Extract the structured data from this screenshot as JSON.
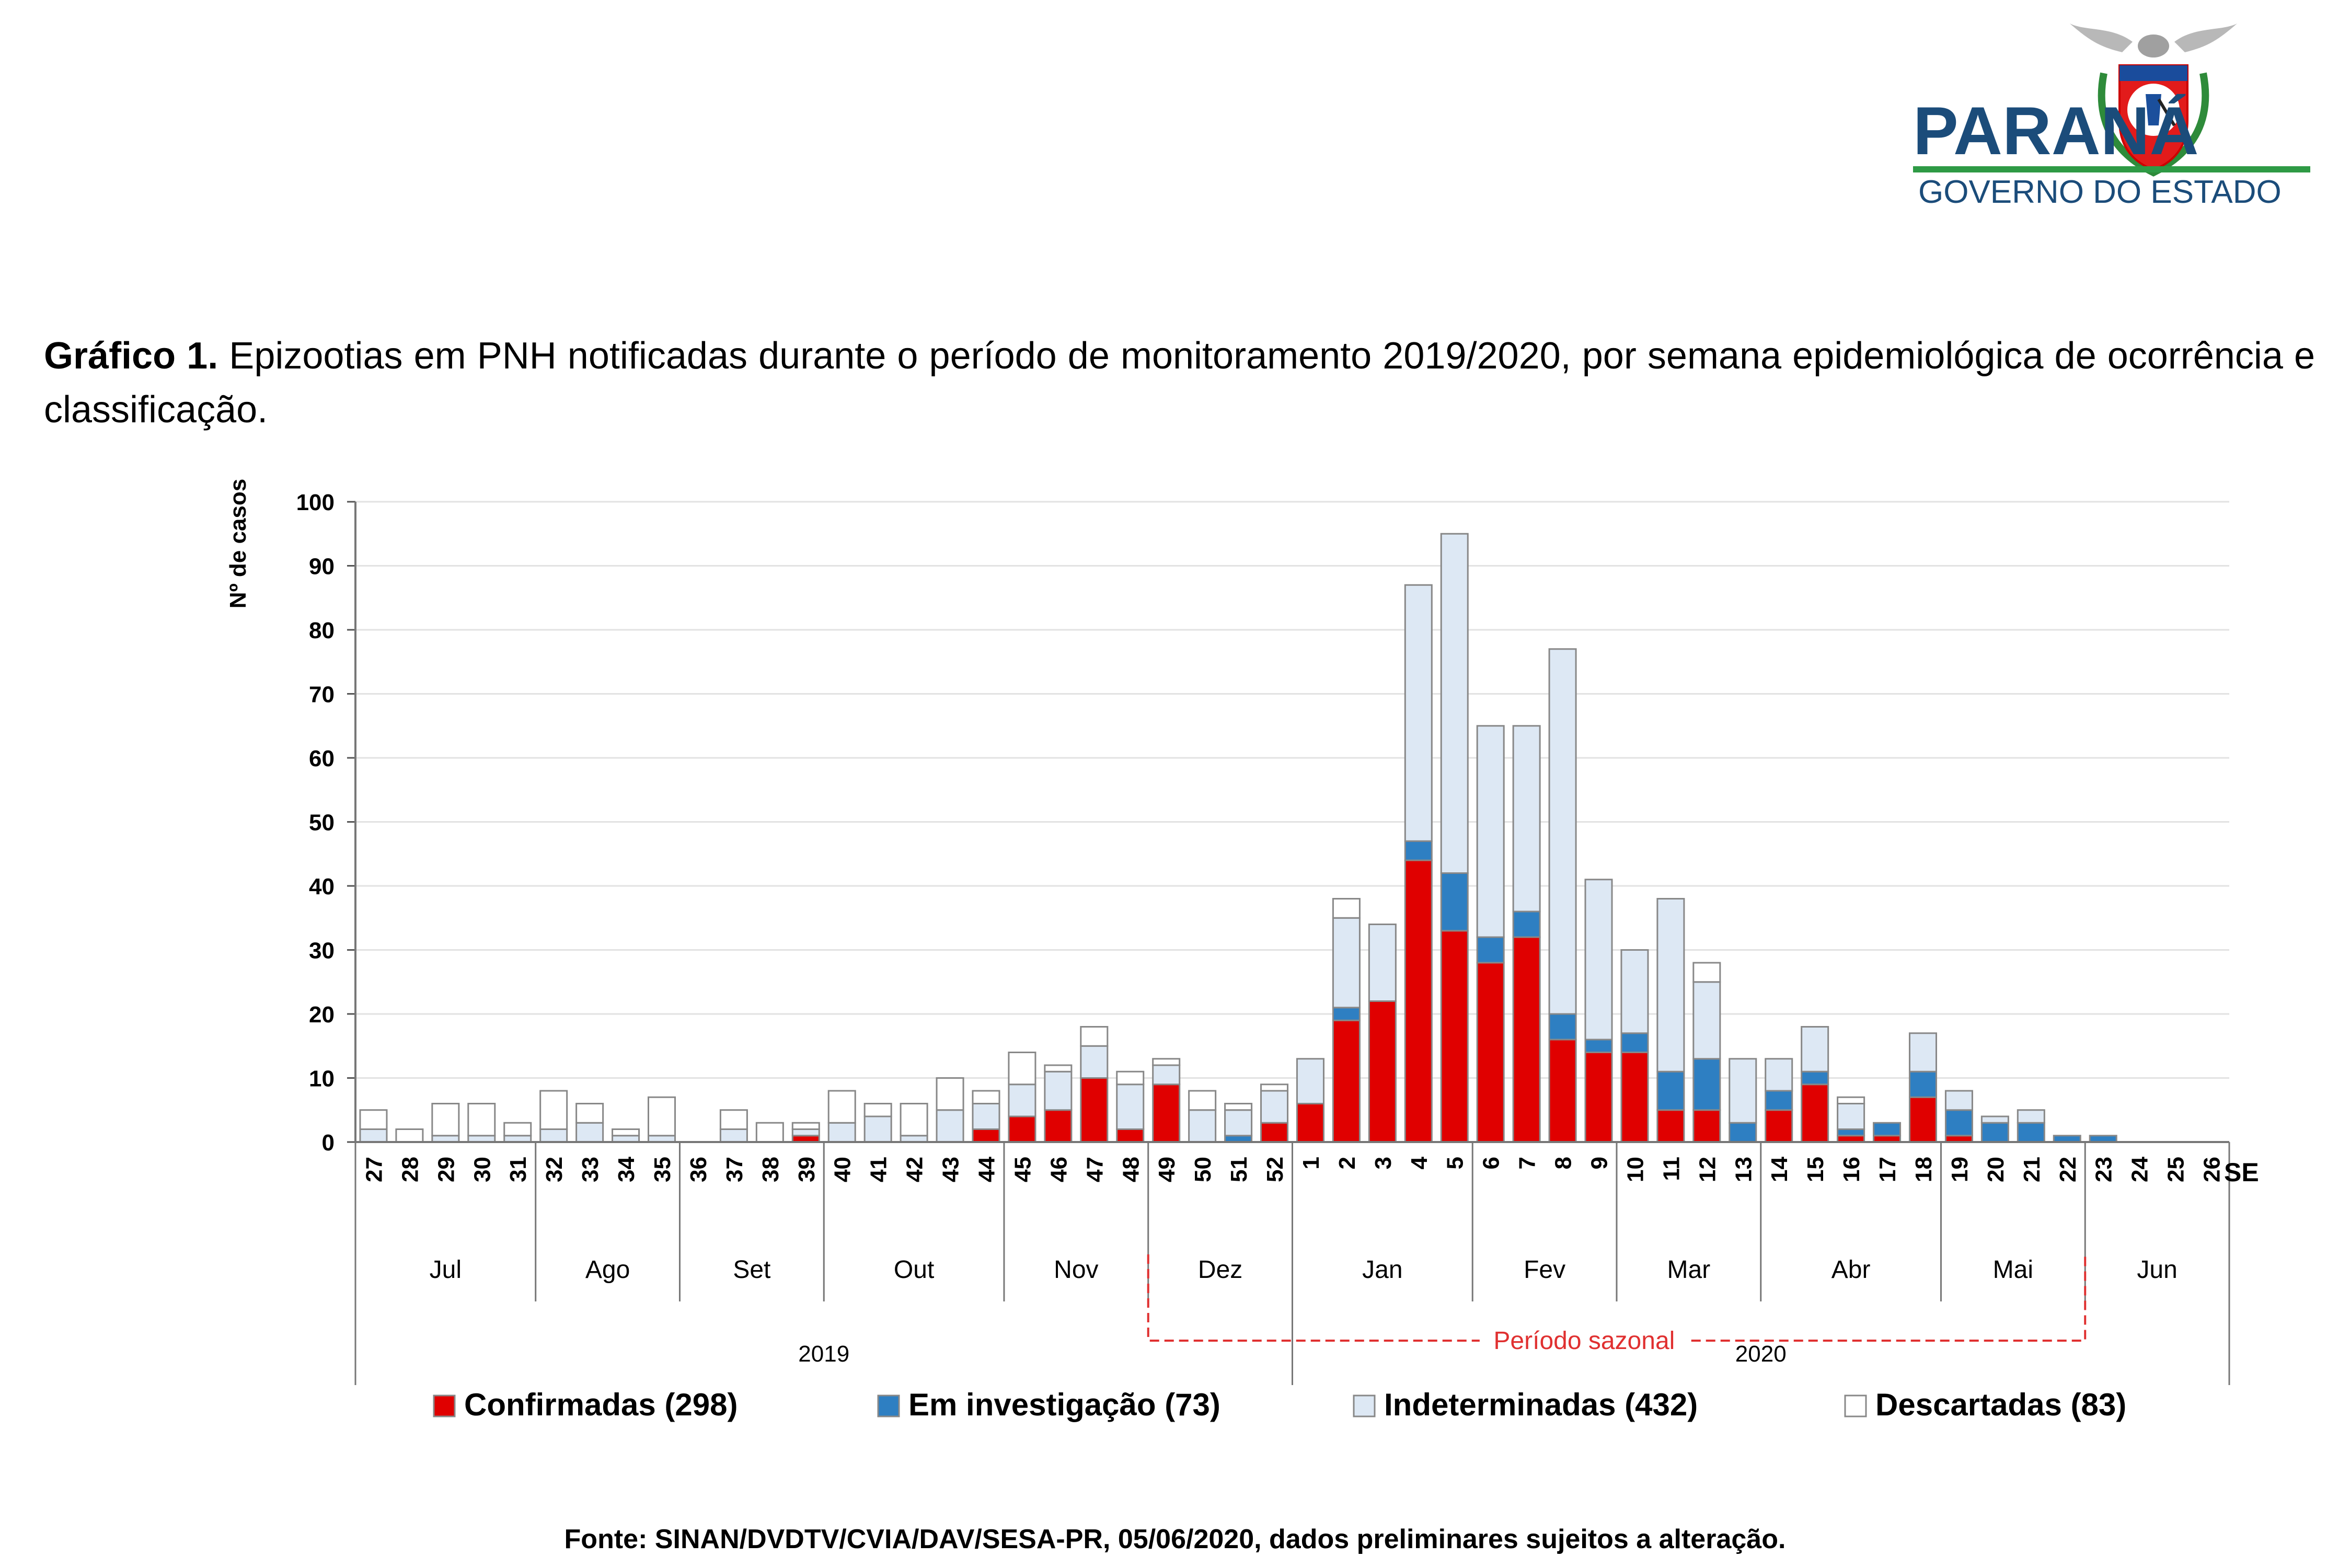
{
  "logo": {
    "name": "PARANÁ",
    "subtitle": "GOVERNO DO ESTADO"
  },
  "caption": {
    "label": "Gráfico 1.",
    "text": " Epizootias em PNH notificadas durante o período de monitoramento 2019/2020, por semana epidemiológica de ocorrência e classificação."
  },
  "source": "Fonte: SINAN/DVDTV/CVIA/DAV/SESA-PR, 05/06/2020, dados preliminares sujeitos a alteração.",
  "chart_data": {
    "type": "bar",
    "stacked": true,
    "title": "",
    "ylabel": "Nº de casos",
    "xlabel": "SE",
    "ylim": [
      0,
      100
    ],
    "yticks": [
      0,
      10,
      20,
      30,
      40,
      50,
      60,
      70,
      80,
      90,
      100
    ],
    "grid": true,
    "legend_position": "bottom",
    "categories": [
      "27",
      "28",
      "29",
      "30",
      "31",
      "32",
      "33",
      "34",
      "35",
      "36",
      "37",
      "38",
      "39",
      "40",
      "41",
      "42",
      "43",
      "44",
      "45",
      "46",
      "47",
      "48",
      "49",
      "50",
      "51",
      "52",
      "1",
      "2",
      "3",
      "4",
      "5",
      "6",
      "7",
      "8",
      "9",
      "10",
      "11",
      "12",
      "13",
      "14",
      "15",
      "16",
      "17",
      "18",
      "19",
      "20",
      "21",
      "22",
      "23",
      "24",
      "25",
      "26"
    ],
    "months": [
      {
        "label": "Jul",
        "start": 0,
        "end": 4
      },
      {
        "label": "Ago",
        "start": 5,
        "end": 8
      },
      {
        "label": "Set",
        "start": 9,
        "end": 12
      },
      {
        "label": "Out",
        "start": 13,
        "end": 17
      },
      {
        "label": "Nov",
        "start": 18,
        "end": 21
      },
      {
        "label": "Dez",
        "start": 22,
        "end": 25
      },
      {
        "label": "Jan",
        "start": 26,
        "end": 30
      },
      {
        "label": "Fev",
        "start": 31,
        "end": 34
      },
      {
        "label": "Mar",
        "start": 35,
        "end": 38
      },
      {
        "label": "Abr",
        "start": 39,
        "end": 43
      },
      {
        "label": "Mai",
        "start": 44,
        "end": 47
      },
      {
        "label": "Jun",
        "start": 48,
        "end": 51
      }
    ],
    "years": [
      {
        "label": "2019",
        "start": 0,
        "end": 25
      },
      {
        "label": "2020",
        "start": 26,
        "end": 51
      }
    ],
    "annotation": {
      "label": "Período sazonal",
      "start_week": "49",
      "end_week": "22"
    },
    "series": [
      {
        "name": "Confirmadas (298)",
        "color": "#e00000",
        "values": [
          0,
          0,
          0,
          0,
          0,
          0,
          0,
          0,
          0,
          0,
          0,
          0,
          1,
          0,
          0,
          0,
          0,
          2,
          4,
          5,
          10,
          2,
          9,
          0,
          0,
          3,
          6,
          19,
          22,
          44,
          33,
          28,
          32,
          16,
          14,
          14,
          5,
          5,
          0,
          5,
          9,
          1,
          1,
          7,
          1,
          0,
          0,
          0,
          0,
          0,
          0,
          0
        ]
      },
      {
        "name": "Em investigação (73)",
        "color": "#2e7fc2",
        "values": [
          0,
          0,
          0,
          0,
          0,
          0,
          0,
          0,
          0,
          0,
          0,
          0,
          0,
          0,
          0,
          0,
          0,
          0,
          0,
          0,
          0,
          0,
          0,
          0,
          1,
          0,
          0,
          2,
          0,
          3,
          9,
          4,
          4,
          4,
          2,
          3,
          6,
          8,
          3,
          3,
          2,
          1,
          2,
          4,
          4,
          3,
          3,
          1,
          1,
          0,
          0,
          0
        ]
      },
      {
        "name": "Indeterminadas (432)",
        "color": "#dde8f4",
        "values": [
          2,
          0,
          1,
          1,
          1,
          2,
          3,
          1,
          1,
          0,
          2,
          0,
          1,
          3,
          4,
          1,
          5,
          4,
          5,
          6,
          5,
          7,
          3,
          5,
          4,
          5,
          7,
          14,
          12,
          40,
          53,
          33,
          29,
          57,
          25,
          13,
          27,
          12,
          10,
          5,
          7,
          4,
          0,
          6,
          3,
          1,
          2,
          0,
          0,
          0,
          0,
          0
        ]
      },
      {
        "name": "Descartadas (83)",
        "color": "#ffffff",
        "values": [
          3,
          2,
          5,
          5,
          2,
          6,
          3,
          1,
          6,
          0,
          3,
          3,
          1,
          5,
          2,
          5,
          5,
          2,
          5,
          1,
          3,
          2,
          1,
          3,
          1,
          1,
          0,
          3,
          0,
          0,
          0,
          0,
          0,
          0,
          0,
          0,
          0,
          3,
          0,
          0,
          0,
          1,
          0,
          0,
          0,
          0,
          0,
          0,
          0,
          0,
          0,
          0
        ]
      }
    ]
  }
}
